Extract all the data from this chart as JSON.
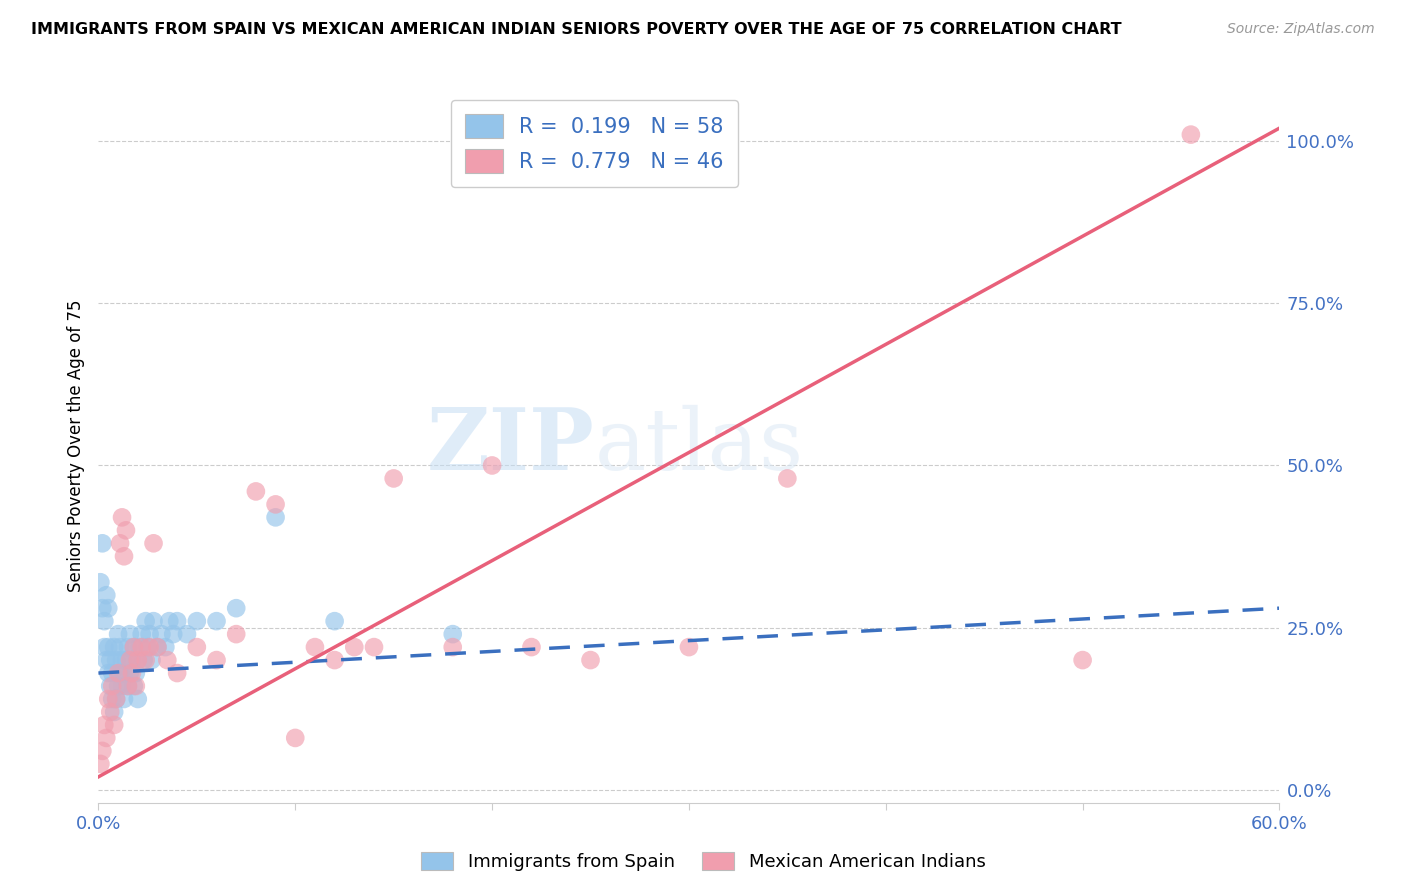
{
  "title": "IMMIGRANTS FROM SPAIN VS MEXICAN AMERICAN INDIAN SENIORS POVERTY OVER THE AGE OF 75 CORRELATION CHART",
  "source": "Source: ZipAtlas.com",
  "ylabel": "Seniors Poverty Over the Age of 75",
  "xlim": [
    0.0,
    0.6
  ],
  "ylim": [
    -0.02,
    1.08
  ],
  "blue_R": "0.199",
  "blue_N": "58",
  "pink_R": "0.779",
  "pink_N": "46",
  "blue_color": "#94C4EA",
  "pink_color": "#F09EAE",
  "blue_line_color": "#3A6FBF",
  "pink_line_color": "#E8607A",
  "watermark_zip": "ZIP",
  "watermark_atlas": "atlas",
  "legend_label_blue": "Immigrants from Spain",
  "legend_label_pink": "Mexican American Indians",
  "ytick_vals": [
    0.0,
    0.25,
    0.5,
    0.75,
    1.0
  ],
  "ytick_labels": [
    "0.0%",
    "25.0%",
    "50.0%",
    "75.0%",
    "100.0%"
  ],
  "xtick_show": [
    "0.0%",
    "60.0%"
  ],
  "blue_scatter_x": [
    0.001,
    0.002,
    0.002,
    0.003,
    0.003,
    0.004,
    0.004,
    0.005,
    0.005,
    0.005,
    0.006,
    0.006,
    0.007,
    0.007,
    0.008,
    0.008,
    0.009,
    0.009,
    0.01,
    0.01,
    0.011,
    0.011,
    0.012,
    0.012,
    0.013,
    0.013,
    0.014,
    0.015,
    0.015,
    0.016,
    0.016,
    0.017,
    0.018,
    0.018,
    0.019,
    0.02,
    0.02,
    0.021,
    0.022,
    0.023,
    0.024,
    0.025,
    0.026,
    0.027,
    0.028,
    0.03,
    0.032,
    0.034,
    0.036,
    0.038,
    0.04,
    0.045,
    0.05,
    0.06,
    0.07,
    0.09,
    0.12,
    0.18
  ],
  "blue_scatter_y": [
    0.32,
    0.28,
    0.38,
    0.22,
    0.26,
    0.2,
    0.3,
    0.18,
    0.22,
    0.28,
    0.16,
    0.2,
    0.14,
    0.18,
    0.12,
    0.22,
    0.14,
    0.2,
    0.16,
    0.24,
    0.18,
    0.22,
    0.16,
    0.2,
    0.14,
    0.18,
    0.2,
    0.16,
    0.22,
    0.18,
    0.24,
    0.2,
    0.16,
    0.22,
    0.18,
    0.14,
    0.2,
    0.22,
    0.24,
    0.2,
    0.26,
    0.22,
    0.24,
    0.2,
    0.26,
    0.22,
    0.24,
    0.22,
    0.26,
    0.24,
    0.26,
    0.24,
    0.26,
    0.26,
    0.28,
    0.42,
    0.26,
    0.24
  ],
  "pink_scatter_x": [
    0.001,
    0.002,
    0.003,
    0.004,
    0.005,
    0.006,
    0.007,
    0.008,
    0.009,
    0.01,
    0.011,
    0.012,
    0.013,
    0.014,
    0.015,
    0.016,
    0.017,
    0.018,
    0.019,
    0.02,
    0.022,
    0.024,
    0.026,
    0.028,
    0.03,
    0.035,
    0.04,
    0.05,
    0.06,
    0.07,
    0.08,
    0.09,
    0.1,
    0.11,
    0.12,
    0.13,
    0.14,
    0.15,
    0.18,
    0.2,
    0.22,
    0.25,
    0.3,
    0.35,
    0.5,
    0.555
  ],
  "pink_scatter_y": [
    0.04,
    0.06,
    0.1,
    0.08,
    0.14,
    0.12,
    0.16,
    0.1,
    0.14,
    0.18,
    0.38,
    0.42,
    0.36,
    0.4,
    0.16,
    0.2,
    0.18,
    0.22,
    0.16,
    0.2,
    0.22,
    0.2,
    0.22,
    0.38,
    0.22,
    0.2,
    0.18,
    0.22,
    0.2,
    0.24,
    0.46,
    0.44,
    0.08,
    0.22,
    0.2,
    0.22,
    0.22,
    0.48,
    0.22,
    0.5,
    0.22,
    0.2,
    0.22,
    0.48,
    0.2,
    1.01
  ],
  "blue_line_x0": 0.0,
  "blue_line_x1": 0.6,
  "blue_line_y0": 0.18,
  "blue_line_y1": 0.28,
  "pink_line_x0": 0.0,
  "pink_line_x1": 0.6,
  "pink_line_y0": 0.02,
  "pink_line_y1": 1.02
}
